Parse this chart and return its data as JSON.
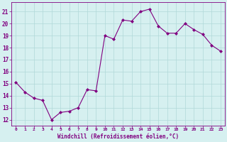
{
  "x": [
    0,
    1,
    2,
    3,
    4,
    5,
    6,
    7,
    8,
    9,
    10,
    11,
    12,
    13,
    14,
    15,
    16,
    17,
    18,
    19,
    20,
    21,
    22,
    23
  ],
  "y": [
    15.1,
    14.3,
    13.8,
    13.6,
    12.0,
    12.6,
    12.7,
    13.0,
    14.5,
    14.4,
    19.0,
    18.7,
    20.3,
    20.2,
    21.0,
    21.2,
    19.8,
    19.2,
    19.2,
    20.0,
    19.5,
    19.1,
    18.2,
    17.7
  ],
  "line_color": "#800080",
  "marker": "D",
  "marker_size": 2.0,
  "bg_color": "#d6f0f0",
  "grid_color": "#b0d8d8",
  "xlabel": "Windchill (Refroidissement éolien,°C)",
  "xlabel_color": "#800080",
  "tick_color": "#800080",
  "ylim": [
    11.5,
    21.8
  ],
  "yticks": [
    12,
    13,
    14,
    15,
    16,
    17,
    18,
    19,
    20,
    21
  ],
  "xlim": [
    -0.5,
    23.5
  ],
  "xticks": [
    0,
    1,
    2,
    3,
    4,
    5,
    6,
    7,
    8,
    9,
    10,
    11,
    12,
    13,
    14,
    15,
    16,
    17,
    18,
    19,
    20,
    21,
    22,
    23
  ],
  "xtick_labels": [
    "0",
    "1",
    "2",
    "3",
    "4",
    "5",
    "6",
    "7",
    "8",
    "9",
    "10",
    "11",
    "12",
    "13",
    "14",
    "15",
    "16",
    "17",
    "18",
    "19",
    "20",
    "21",
    "22",
    "23"
  ]
}
